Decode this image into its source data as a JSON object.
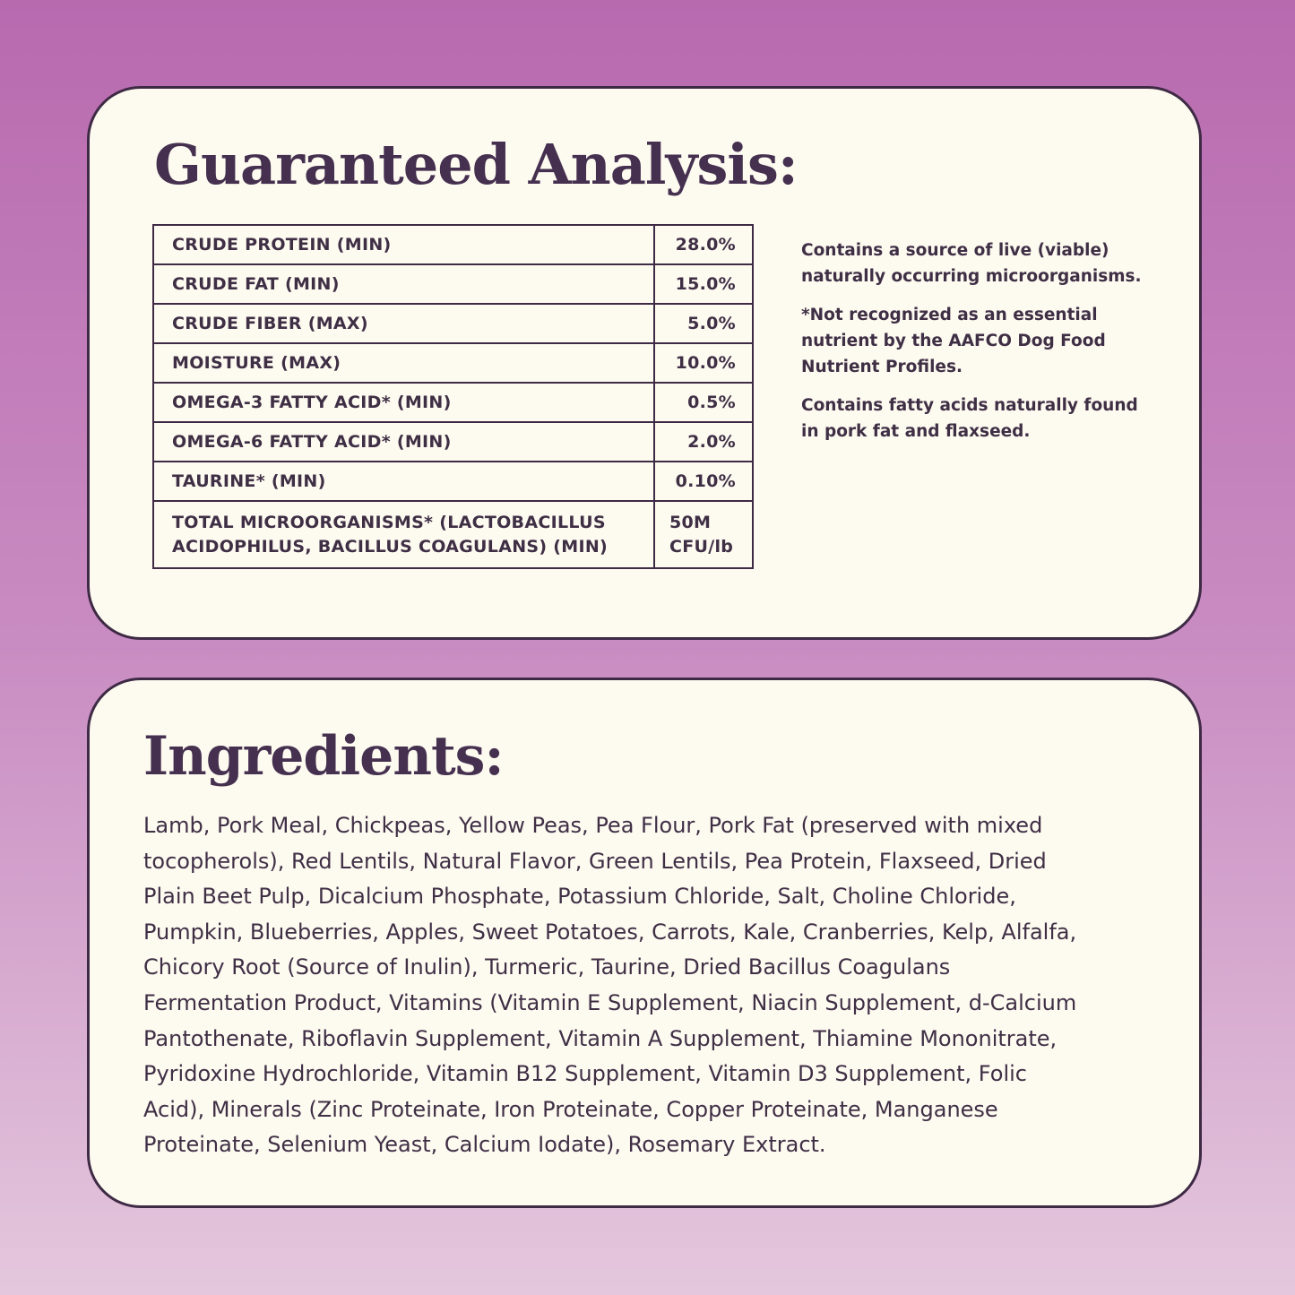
{
  "analysis": {
    "title": "Guaranteed Analysis:",
    "rows": [
      {
        "label": "CRUDE PROTEIN (MIN)",
        "value": "28.0%"
      },
      {
        "label": "CRUDE FAT (MIN)",
        "value": "15.0%"
      },
      {
        "label": "CRUDE FIBER (MAX)",
        "value": "5.0%"
      },
      {
        "label": "MOISTURE (MAX)",
        "value": "10.0%"
      },
      {
        "label": "OMEGA-3 FATTY ACID* (MIN)",
        "value": "0.5%"
      },
      {
        "label": "OMEGA-6 FATTY ACID* (MIN)",
        "value": "2.0%"
      },
      {
        "label": "TAURINE* (MIN)",
        "value": "0.10%"
      },
      {
        "label": "TOTAL MICROORGANISMS* (LACTOBACILLUS",
        "label2": "ACIDOPHILUS, BACILLUS COAGULANS) (MIN)",
        "value": "50M",
        "value2": "CFU/lb"
      }
    ],
    "notes": [
      "Contains a source of live (viable) naturally occurring microorganisms.",
      "*Not recognized as an essential nutrient by the AAFCO Dog Food Nutrient Profiles.",
      "Contains fatty acids naturally found in pork fat and flaxseed."
    ]
  },
  "ingredients": {
    "title": "Ingredients:",
    "lines": [
      "Lamb, Pork Meal, Chickpeas, Yellow Peas, Pea Flour, Pork Fat (preserved with mixed",
      "tocopherols), Red Lentils, Natural Flavor, Green Lentils, Pea Protein, Flaxseed, Dried",
      "Plain Beet Pulp, Dicalcium Phosphate, Potassium Chloride, Salt, Choline Chloride,",
      "Pumpkin, Blueberries, Apples, Sweet Potatoes, Carrots, Kale, Cranberries, Kelp, Alfalfa,",
      "Chicory Root (Source of Inulin), Turmeric, Taurine, Dried Bacillus Coagulans",
      "Fermentation Product, Vitamins (Vitamin E Supplement, Niacin Supplement, d-Calcium",
      "Pantothenate, Riboflavin Supplement, Vitamin A Supplement, Thiamine Mononitrate,",
      "Pyridoxine Hydrochloride, Vitamin B12 Supplement, Vitamin D3 Supplement, Folic",
      "Acid), Minerals (Zinc Proteinate, Iron Proteinate, Copper Proteinate, Manganese",
      "Proteinate, Selenium Yeast, Calcium Iodate), Rosemary Extract."
    ]
  },
  "colors": {
    "background_top": "#b86aaf",
    "background_bottom": "#e4c7dd",
    "card": "#fdfaf0",
    "ink": "#3f2f45"
  }
}
